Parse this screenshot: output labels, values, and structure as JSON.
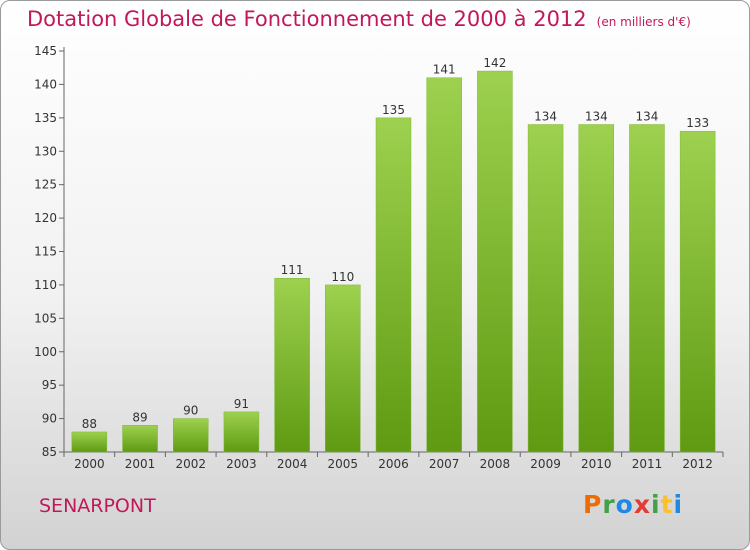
{
  "header": {
    "title": "Dotation Globale de Fonctionnement de 2000 à 2012",
    "unit": "(en milliers d'€)"
  },
  "footer": {
    "commune": "SENARPONT",
    "logo_letters": [
      "P",
      "r",
      "o",
      "x",
      "i",
      "t",
      "i"
    ],
    "logo_colors": [
      "#ef6c00",
      "#43a047",
      "#1e88e5",
      "#e53935",
      "#43a047",
      "#fbc02d",
      "#1e88e5"
    ]
  },
  "colors": {
    "title": "#c2185b",
    "bar_light": "#9dd14f",
    "bar_dark": "#5f9a12",
    "axis": "#666666"
  },
  "chart_data": {
    "type": "bar",
    "title": "Dotation Globale de Fonctionnement de 2000 à 2012",
    "categories": [
      "2000",
      "2001",
      "2002",
      "2003",
      "2004",
      "2005",
      "2006",
      "2007",
      "2008",
      "2009",
      "2010",
      "2011",
      "2012"
    ],
    "values": [
      88,
      89,
      90,
      91,
      111,
      110,
      135,
      141,
      142,
      134,
      134,
      134,
      133
    ],
    "ylim": [
      85,
      145
    ],
    "yticks": [
      85,
      90,
      95,
      100,
      105,
      110,
      115,
      120,
      125,
      130,
      135,
      140,
      145
    ],
    "grid": false
  }
}
